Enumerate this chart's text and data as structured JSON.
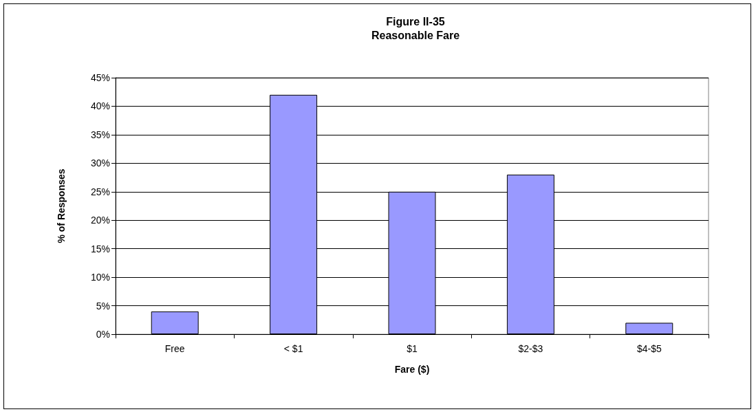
{
  "chart_data": {
    "type": "bar",
    "title": "Figure II-35",
    "subtitle": "Reasonable Fare",
    "xlabel": "Fare ($)",
    "ylabel": "% of Responses",
    "categories": [
      "Free",
      "< $1",
      "$1",
      "$2-$3",
      "$4-$5"
    ],
    "values": [
      4,
      42,
      25,
      28,
      2
    ],
    "color": "#9999ff",
    "ylim": [
      0,
      45
    ],
    "yticks": [
      {
        "value": 0,
        "label": "0%"
      },
      {
        "value": 5,
        "label": "5%"
      },
      {
        "value": 10,
        "label": "10%"
      },
      {
        "value": 15,
        "label": "15%"
      },
      {
        "value": 20,
        "label": "20%"
      },
      {
        "value": 25,
        "label": "25%"
      },
      {
        "value": 30,
        "label": "30%"
      },
      {
        "value": 35,
        "label": "35%"
      },
      {
        "value": 40,
        "label": "40%"
      },
      {
        "value": 45,
        "label": "45%"
      }
    ],
    "grid": "y"
  }
}
